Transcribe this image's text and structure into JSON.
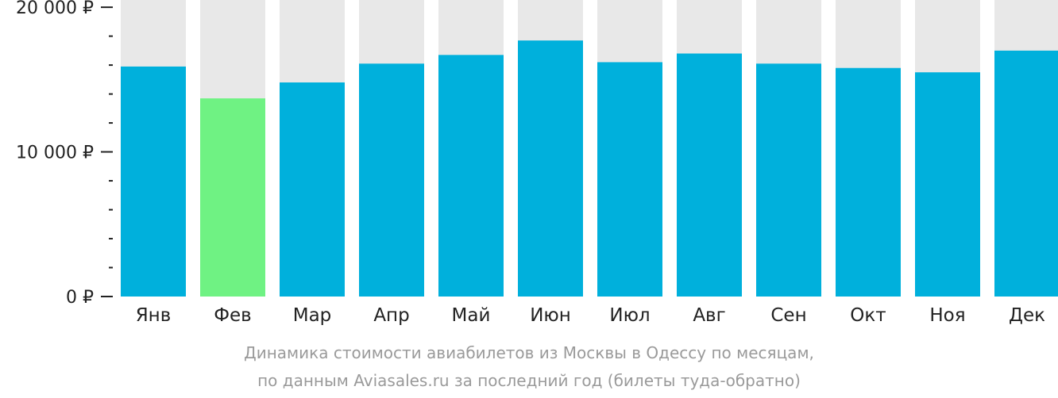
{
  "chart_data": {
    "type": "bar",
    "categories": [
      "Янв",
      "Фев",
      "Мар",
      "Апр",
      "Май",
      "Июн",
      "Июл",
      "Авг",
      "Сен",
      "Окт",
      "Ноя",
      "Дек"
    ],
    "values": [
      15900,
      13700,
      14800,
      16100,
      16700,
      17700,
      16200,
      16800,
      16100,
      15800,
      15500,
      17000
    ],
    "ylim": [
      0,
      20500
    ],
    "yticks": [
      {
        "value": 0,
        "label": "0 ₽"
      },
      {
        "value": 10000,
        "label": "10 000 ₽"
      },
      {
        "value": 20000,
        "label": "20 000 ₽"
      }
    ],
    "minor_tick_step": 2000,
    "highlight_index": 1,
    "colors": {
      "bar": "#00b0dc",
      "highlight": "#6ff283",
      "track": "#e8e8e8",
      "axis": "#222222"
    },
    "caption": [
      "Динамика стоимости авиабилетов из Москвы в Одессу по месяцам,",
      "по данным Aviasales.ru за последний год (билеты туда-обратно)"
    ]
  }
}
